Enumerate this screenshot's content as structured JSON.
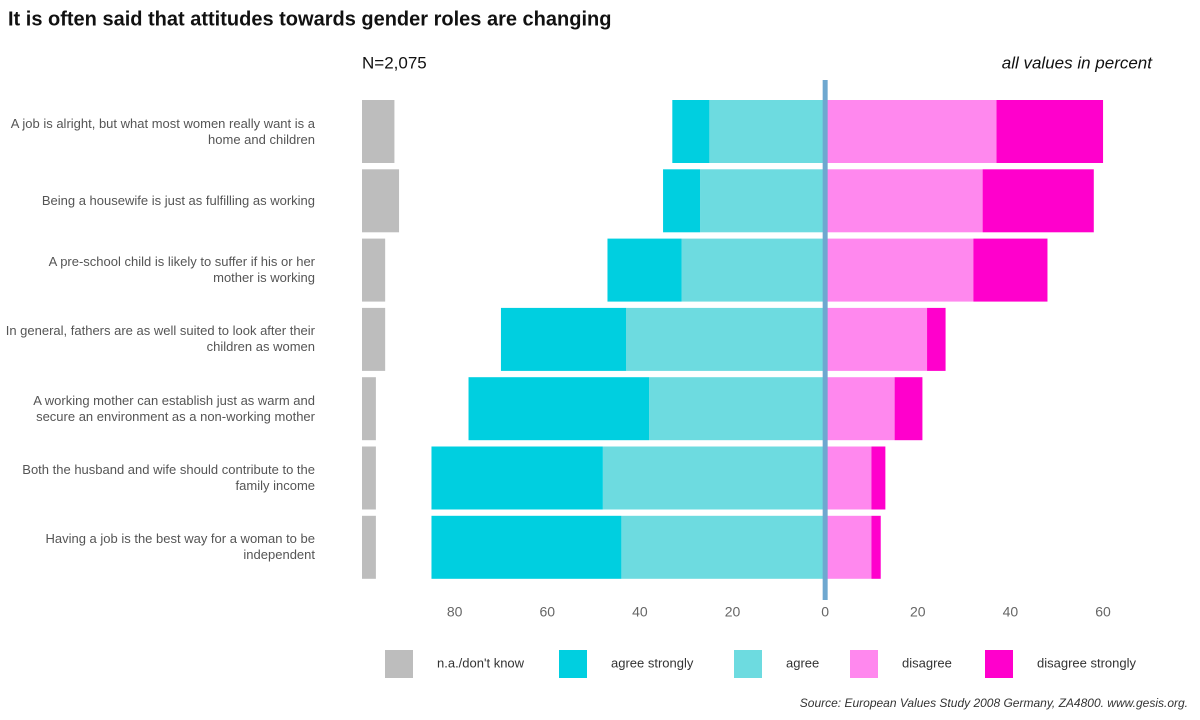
{
  "chart_data": {
    "type": "diverging-bar",
    "title": "It is often said that attitudes towards gender roles are changing",
    "subtitle": "N=2,075",
    "annotation": "all values in percent",
    "source": "Source: European Values Study 2008 Germany, ZA4800. www.gesis.org.",
    "categories": [
      "A job is alright, but what most women really want is a home and children",
      "Being a housewife is just as fulfilling as working",
      "A pre-school child is likely to suffer if his or her mother is working",
      "In general, fathers are as well suited to look after their children as women",
      "A working mother can establish just as warm and secure an environment as a non-working mother",
      "Both the husband and wife should contribute to the family income",
      "Having a job is the best way for a woman to be independent"
    ],
    "series": [
      {
        "name": "n.a./don't know",
        "color": "#bdbdbd",
        "values": [
          7,
          8,
          5,
          5,
          3,
          3,
          3
        ]
      },
      {
        "name": "agree strongly",
        "color": "#00cfe0",
        "values": [
          8,
          8,
          16,
          27,
          39,
          37,
          41
        ]
      },
      {
        "name": "agree",
        "color": "#6ddbe0",
        "values": [
          25,
          27,
          31,
          43,
          38,
          48,
          44
        ]
      },
      {
        "name": "disagree",
        "color": "#ff88ee",
        "values": [
          37,
          34,
          32,
          22,
          15,
          10,
          10
        ]
      },
      {
        "name": "disagree strongly",
        "color": "#ff00cc",
        "values": [
          23,
          24,
          16,
          4,
          6,
          3,
          2
        ]
      }
    ],
    "xlim": [
      -100,
      71
    ],
    "xticks": [
      {
        "value": -80,
        "label": "80"
      },
      {
        "value": -60,
        "label": "60"
      },
      {
        "value": -40,
        "label": "40"
      },
      {
        "value": -20,
        "label": "20"
      },
      0,
      20,
      40,
      60
    ],
    "zero_line_color": "#6fa8d0"
  }
}
